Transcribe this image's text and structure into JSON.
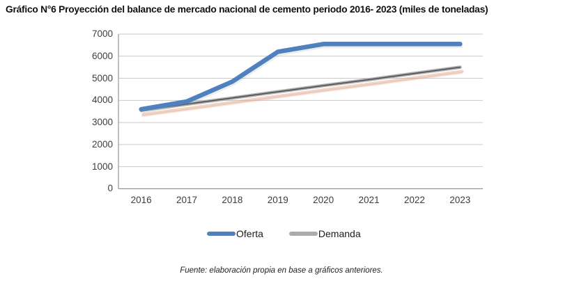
{
  "title": "Gráfico N°6 Proyección del balance de mercado nacional de cemento periodo 2016- 2023 (miles de toneladas)",
  "source_note": "Fuente: elaboración propia en base a gráficos anteriores.",
  "colors": {
    "oferta_line": "#4E81BD",
    "demanda_band": "#ABABAB",
    "demanda_core": "#474747",
    "demanda_shadow": "#E2A98E",
    "gridline": "#C9C9C9",
    "axis": "#969696",
    "tick_text": "#3D3D3D"
  },
  "chart_data": {
    "type": "line",
    "categories": [
      "2016",
      "2017",
      "2018",
      "2019",
      "2020",
      "2021",
      "2022",
      "2023"
    ],
    "series": [
      {
        "name": "Oferta",
        "color": "#4E81BD",
        "values": [
          3600,
          3950,
          4850,
          6200,
          6550,
          6550,
          6550,
          6550
        ]
      },
      {
        "name": "Demanda",
        "color": "#ABABAB",
        "values": [
          3550,
          3830,
          4110,
          4390,
          4670,
          4940,
          5220,
          5500
        ]
      }
    ],
    "title": "Gráfico N°6 Proyección del balance de mercado nacional de cemento periodo 2016- 2023 (miles de toneladas)",
    "xlabel": "",
    "ylabel": "",
    "ylim": [
      0,
      7000
    ],
    "ytick_step": 1000,
    "grid": true,
    "legend_position": "bottom"
  }
}
